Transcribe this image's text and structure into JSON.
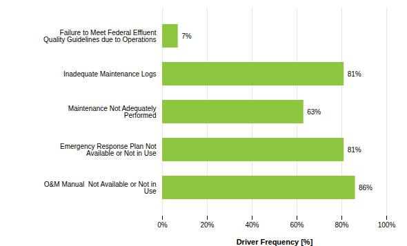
{
  "chart_data": {
    "type": "bar",
    "orientation": "horizontal",
    "categories": [
      "O&M Manual  Not Available or Not in\nUse",
      "Emergency Response Plan Not\nAvailable or Not in Use",
      "Maintenance Not Adequately\nPerformed",
      "Inadequate Maintenance Logs",
      "Failure to Meet Federal Effluent\nQuality Guidelines due to Operations"
    ],
    "values": [
      86,
      81,
      63,
      81,
      7
    ],
    "value_labels": [
      "86%",
      "81%",
      "63%",
      "81%",
      "7%"
    ],
    "data_labels": true,
    "color": "#8DC63F",
    "xlabel": "Driver Frequency [%]",
    "xlim": [
      0,
      100
    ],
    "xticks": [
      {
        "value": 0,
        "label": "0%"
      },
      {
        "value": 20,
        "label": "20%"
      },
      {
        "value": 40,
        "label": "40%"
      },
      {
        "value": 60,
        "label": "60%"
      },
      {
        "value": 80,
        "label": "80%"
      },
      {
        "value": 100,
        "label": "100%"
      }
    ],
    "grid": true
  }
}
